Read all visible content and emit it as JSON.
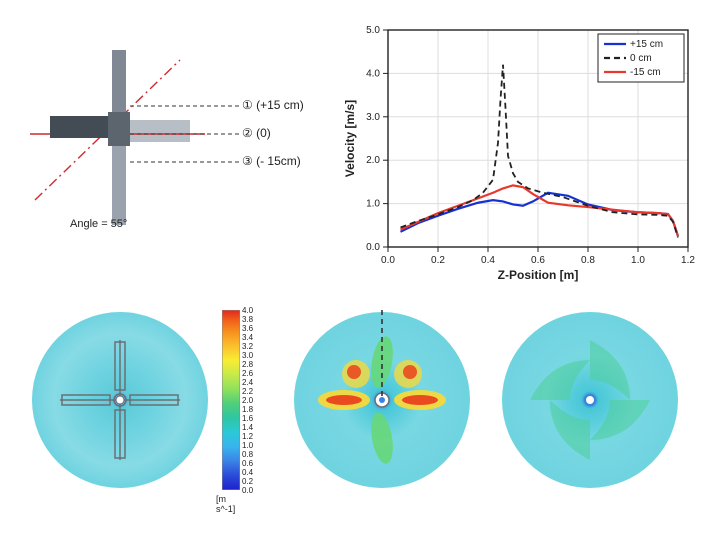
{
  "schematic": {
    "angle_label": "Angle = 55°",
    "lines": [
      {
        "marker": "①",
        "label": "(+15 cm)",
        "y": 56
      },
      {
        "marker": "②",
        "label": "(0)",
        "y": 84
      },
      {
        "marker": "③",
        "label": "(- 15cm)",
        "y": 112
      }
    ],
    "colors": {
      "shaft_top": "#7f8893",
      "shaft_bot": "#9aa3ad",
      "blade_front": "#434b55",
      "blade_back": "#b8bec5",
      "dash_line": "#333333",
      "red_line": "#d1292e"
    }
  },
  "chart": {
    "title": "",
    "xlabel": "Z-Position [m]",
    "ylabel": "Velocity [m/s]",
    "xlim": [
      0.0,
      1.2
    ],
    "ylim": [
      0.0,
      5.0
    ],
    "xticks": [
      0.0,
      0.2,
      0.4,
      0.6,
      0.8,
      1.0,
      1.2
    ],
    "yticks": [
      0.0,
      1.0,
      2.0,
      3.0,
      4.0,
      5.0
    ],
    "grid_color": "#dddddd",
    "axis_color": "#222222",
    "bg": "#ffffff",
    "label_fontsize": 12,
    "tick_fontsize": 10,
    "legend_fontsize": 10,
    "legend": {
      "pos": "top-right",
      "items": [
        {
          "label": "+15 cm",
          "color": "#1531d1",
          "dash": ""
        },
        {
          "label": "0 cm",
          "color": "#222222",
          "dash": "6 4"
        },
        {
          "label": "-15 cm",
          "color": "#e8382b",
          "dash": ""
        }
      ]
    },
    "series": {
      "p15": {
        "color": "#1531d1",
        "dash": "",
        "width": 2.2,
        "x": [
          0.05,
          0.12,
          0.2,
          0.28,
          0.36,
          0.42,
          0.46,
          0.5,
          0.54,
          0.58,
          0.64,
          0.72,
          0.8,
          0.9,
          1.0,
          1.08,
          1.12,
          1.14,
          1.16
        ],
        "y": [
          0.35,
          0.55,
          0.72,
          0.88,
          1.02,
          1.08,
          1.05,
          0.98,
          0.95,
          1.05,
          1.25,
          1.18,
          0.98,
          0.85,
          0.8,
          0.78,
          0.76,
          0.6,
          0.25
        ]
      },
      "zero": {
        "color": "#222222",
        "dash": "6 4",
        "width": 1.8,
        "x": [
          0.05,
          0.12,
          0.2,
          0.28,
          0.34,
          0.38,
          0.42,
          0.44,
          0.45,
          0.46,
          0.47,
          0.48,
          0.5,
          0.52,
          0.56,
          0.62,
          0.7,
          0.8,
          0.9,
          1.0,
          1.08,
          1.12,
          1.14,
          1.16
        ],
        "y": [
          0.45,
          0.6,
          0.75,
          0.92,
          1.08,
          1.25,
          1.55,
          2.4,
          3.4,
          4.2,
          3.2,
          2.1,
          1.7,
          1.5,
          1.35,
          1.25,
          1.15,
          0.95,
          0.8,
          0.75,
          0.74,
          0.72,
          0.58,
          0.22
        ]
      },
      "m15": {
        "color": "#e8382b",
        "dash": "",
        "width": 2.2,
        "x": [
          0.05,
          0.12,
          0.2,
          0.28,
          0.36,
          0.42,
          0.46,
          0.5,
          0.54,
          0.58,
          0.64,
          0.72,
          0.8,
          0.9,
          1.0,
          1.08,
          1.12,
          1.14,
          1.16
        ],
        "y": [
          0.4,
          0.58,
          0.78,
          0.95,
          1.12,
          1.25,
          1.35,
          1.42,
          1.38,
          1.22,
          1.02,
          0.96,
          0.92,
          0.86,
          0.8,
          0.78,
          0.76,
          0.6,
          0.25
        ]
      }
    }
  },
  "colorbar": {
    "unit": "[m s^-1]",
    "ticks": [
      "4.0",
      "3.8",
      "3.6",
      "3.4",
      "3.2",
      "3.0",
      "2.8",
      "2.6",
      "2.4",
      "2.2",
      "2.0",
      "1.8",
      "1.6",
      "1.4",
      "1.2",
      "1.0",
      "0.8",
      "0.6",
      "0.4",
      "0.2",
      "0.0"
    ],
    "stops": [
      {
        "p": 0.0,
        "c": "#e1261c"
      },
      {
        "p": 0.05,
        "c": "#ef5a1a"
      },
      {
        "p": 0.12,
        "c": "#f78f1e"
      },
      {
        "p": 0.2,
        "c": "#fbc02d"
      },
      {
        "p": 0.28,
        "c": "#f9ed32"
      },
      {
        "p": 0.36,
        "c": "#c6e94b"
      },
      {
        "p": 0.44,
        "c": "#8fe15b"
      },
      {
        "p": 0.52,
        "c": "#4fcf7a"
      },
      {
        "p": 0.6,
        "c": "#2fc6a3"
      },
      {
        "p": 0.68,
        "c": "#2bc8d8"
      },
      {
        "p": 0.76,
        "c": "#39b3ee"
      },
      {
        "p": 0.84,
        "c": "#3a83e6"
      },
      {
        "p": 0.92,
        "c": "#2a4bd7"
      },
      {
        "p": 1.0,
        "c": "#1f1fd0"
      }
    ]
  },
  "maps": {
    "disc_bg": "#6fd3e0",
    "outer_halo": "#87dbe5",
    "mid_ring": "#5ecbd9",
    "center_blue": "#2b64d8",
    "swirl_green": "#67d77a",
    "swirl_yellow": "#f4d93c",
    "swirl_red": "#ea4a1f",
    "impeller_line": "#6a6f74"
  }
}
